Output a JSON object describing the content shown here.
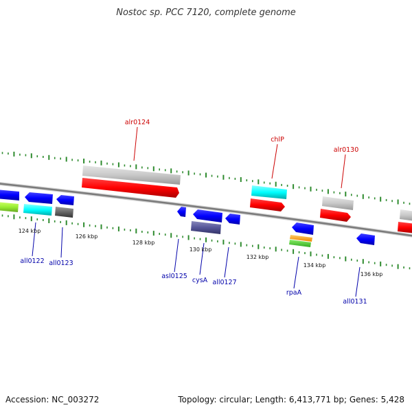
{
  "title": "Nostoc sp. PCC 7120, complete genome",
  "footer": {
    "accession": "Accession: NC_003272",
    "stats": "Topology: circular; Length: 6,413,771 bp; Genes: 5,428"
  },
  "colors": {
    "forward_label": "#cc0000",
    "reverse_label": "#0000aa",
    "tick": "#2e8b2e",
    "backbone": "#808080"
  },
  "scale_labels": [
    "124 kbp",
    "126 kbp",
    "128 kbp",
    "130 kbp",
    "132 kbp",
    "134 kbp",
    "136 kbp"
  ],
  "gene_labels": {
    "forward": [
      "alr0124",
      "chlP",
      "alr0130"
    ],
    "reverse": [
      "all0122",
      "all0123",
      "asl0125",
      "cysA",
      "all0127",
      "rpaA",
      "all0131"
    ]
  }
}
